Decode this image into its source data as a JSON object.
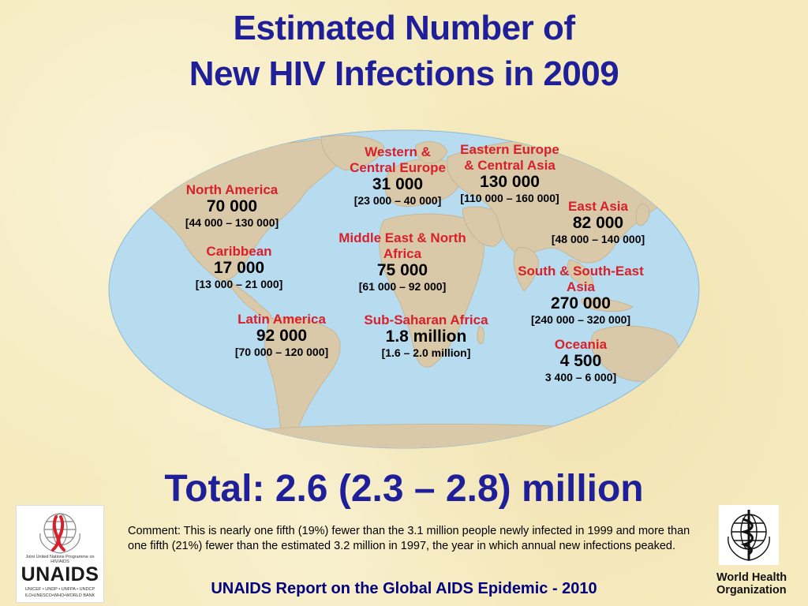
{
  "title": {
    "line1": "Estimated Number of",
    "line2": "New HIV Infections in 2009"
  },
  "regions": [
    {
      "key": "north-america",
      "name_lines": [
        "North America"
      ],
      "value": "70 000",
      "range": "[44 000 – 130 000]"
    },
    {
      "key": "caribbean",
      "name_lines": [
        "Caribbean"
      ],
      "value": "17 000",
      "range": "[13 000 – 21 000]"
    },
    {
      "key": "latin-america",
      "name_lines": [
        "Latin America"
      ],
      "value": "92 000",
      "range": "[70 000 – 120 000]"
    },
    {
      "key": "western-central-europe",
      "name_lines": [
        "Western &",
        "Central Europe"
      ],
      "value": "31 000",
      "range": "[23 000 – 40 000]"
    },
    {
      "key": "eastern-europe-central-asia",
      "name_lines": [
        "Eastern Europe",
        "& Central Asia"
      ],
      "value": "130 000",
      "range": "[110 000 – 160 000]"
    },
    {
      "key": "middle-east-north-africa",
      "name_lines": [
        "Middle East & North",
        "Africa"
      ],
      "value": "75 000",
      "range": "[61 000 – 92 000]"
    },
    {
      "key": "sub-saharan-africa",
      "name_lines": [
        "Sub-Saharan Africa"
      ],
      "value": "1.8 million",
      "range": "[1.6 – 2.0 million]"
    },
    {
      "key": "east-asia",
      "name_lines": [
        "East Asia"
      ],
      "value": "82 000",
      "range": "[48 000 – 140 000]"
    },
    {
      "key": "south-south-east-asia",
      "name_lines": [
        "South & South-East",
        "Asia"
      ],
      "value": "270 000",
      "range": "[240 000 – 320 000]"
    },
    {
      "key": "oceania",
      "name_lines": [
        "Oceania"
      ],
      "value": "4 500",
      "range": "3 400 – 6 000]"
    }
  ],
  "total": "Total: 2.6 (2.3 – 2.8) million",
  "comment": "Comment:  This is nearly one fifth (19%) fewer than the 3.1 million people newly infected in 1999 and more than one fifth (21%) fewer than the estimated 3.2 million in 1997, the year in which annual new infections peaked.",
  "footer": "UNAIDS Report on the Global AIDS Epidemic - 2010",
  "logos": {
    "unaids": {
      "tagline": "Joint United Nations Programme on HIV/AIDS",
      "word": "UNAIDS",
      "cosponsors_line1": "UNICEF • UNDP • UNFPA • UNDCP",
      "cosponsors_line2": "ILO•UNESCO•WHO•WORLD BANK"
    },
    "who": {
      "line1": "World Health",
      "line2": "Organization"
    }
  },
  "colors": {
    "background": "#f6ebbf",
    "title": "#1f1f9a",
    "region_name": "#d8202a",
    "ocean": "#b7dcef",
    "land": "#d9c9a8"
  }
}
